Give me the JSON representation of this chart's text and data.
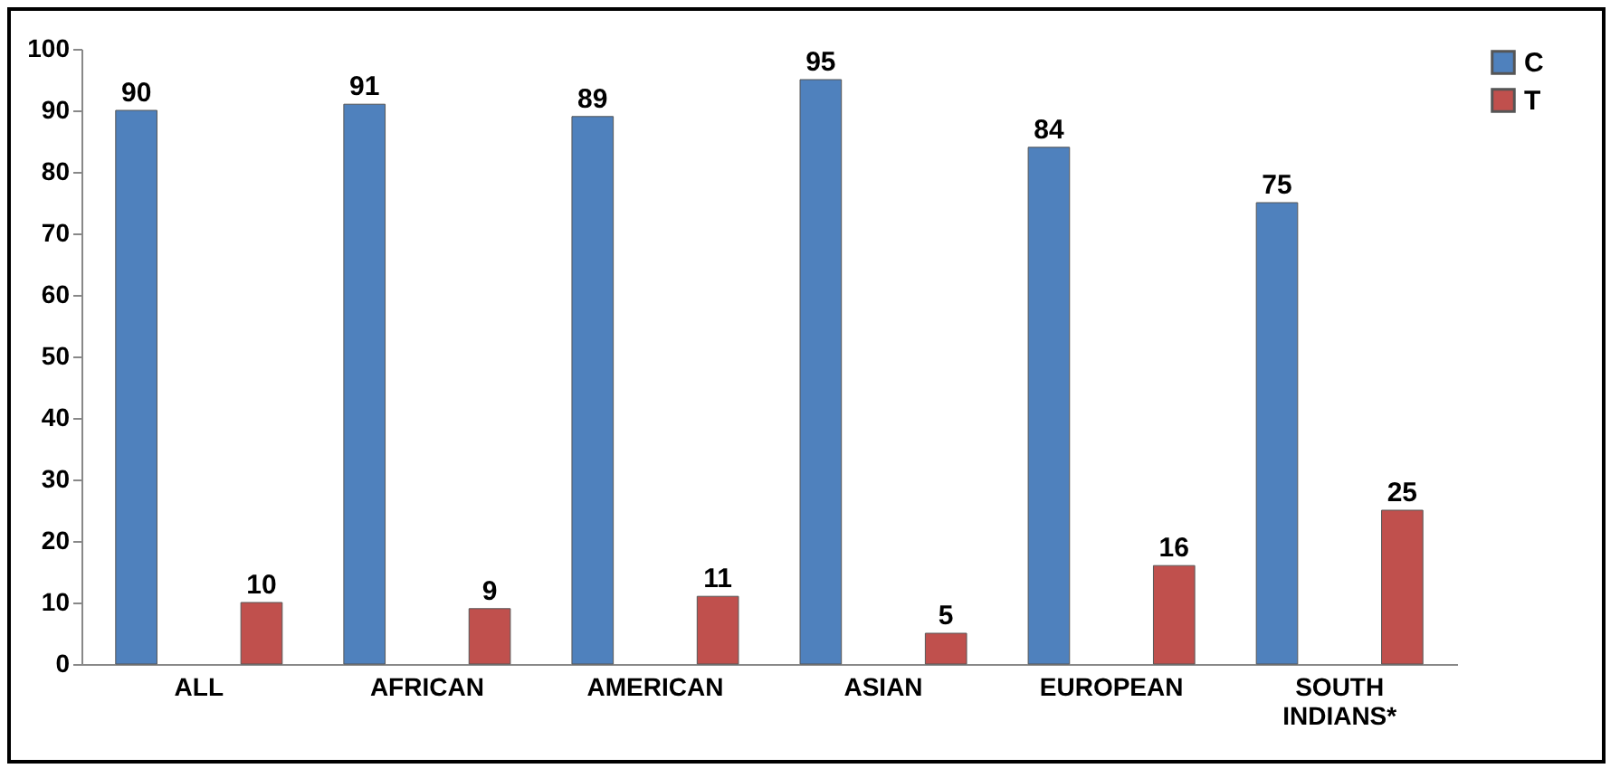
{
  "chart_data": {
    "type": "bar",
    "categories": [
      "ALL",
      "AFRICAN",
      "AMERICAN",
      "ASIAN",
      "EUROPEAN",
      "SOUTH INDIANS*"
    ],
    "series": [
      {
        "name": "C",
        "color": "#4f81bd",
        "values": [
          90,
          91,
          89,
          95,
          84,
          75
        ]
      },
      {
        "name": "T",
        "color": "#c0504d",
        "values": [
          10,
          9,
          11,
          5,
          16,
          25
        ]
      }
    ],
    "ylim": [
      0,
      100
    ],
    "yticks": [
      0,
      10,
      20,
      30,
      40,
      50,
      60,
      70,
      80,
      90,
      100
    ],
    "data_labels": true,
    "legend": "right"
  }
}
